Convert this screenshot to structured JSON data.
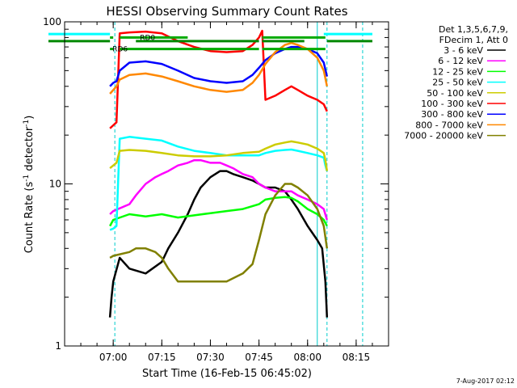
{
  "chart_data": {
    "type": "line",
    "title": "HESSI Observing Summary Count Rates",
    "xlabel": "Start Time (16-Feb-15 06:45:02)",
    "ylabel": "Count Rate (s",
    "ylabel_sup1": "-1",
    "ylabel_mid": " detector",
    "ylabel_sup2": "-1",
    "ylabel_end": ")",
    "x_unit": "minutes after 06:45:02",
    "x_range": [
      0,
      100
    ],
    "y_scale": "log",
    "y_range": [
      1,
      100
    ],
    "x_ticks": [
      {
        "label": "07:00",
        "value": 15
      },
      {
        "label": "07:15",
        "value": 30
      },
      {
        "label": "07:30",
        "value": 45
      },
      {
        "label": "07:45",
        "value": 60
      },
      {
        "label": "08:00",
        "value": 75
      },
      {
        "label": "08:15",
        "value": 90
      }
    ],
    "y_ticks": [
      {
        "label": "1",
        "value": 1
      },
      {
        "label": "10",
        "value": 10
      },
      {
        "label": "100",
        "value": 100
      }
    ],
    "legend_header": [
      "Det 1,3,5,6,7,9,",
      "FDecim 1, Att 0"
    ],
    "legend_position": "right",
    "grid": false,
    "series": [
      {
        "name": "3 - 6 keV",
        "color": "#000000",
        "x": [
          14,
          14.5,
          15,
          17,
          20,
          25,
          30,
          32,
          35,
          38,
          40,
          42,
          45,
          48,
          50,
          52,
          55,
          58,
          60,
          62,
          65,
          68,
          70,
          72,
          75,
          78,
          79.5,
          80.5,
          81
        ],
        "y": [
          1.5,
          2,
          2.5,
          3.5,
          3,
          2.8,
          3.3,
          4,
          5,
          6.5,
          8,
          9.5,
          11,
          12,
          12,
          11.5,
          11,
          10.5,
          10,
          9.5,
          9.5,
          9,
          8,
          7,
          5.5,
          4.5,
          4,
          2.5,
          1.5
        ]
      },
      {
        "name": "6 - 12 keV",
        "color": "#ff00ff",
        "x": [
          14,
          15,
          20,
          22,
          25,
          28,
          30,
          32,
          35,
          38,
          40,
          42,
          45,
          48,
          50,
          52,
          55,
          58,
          60,
          62,
          65,
          68,
          70,
          72,
          75,
          78,
          80,
          81
        ],
        "y": [
          6.5,
          6.8,
          7.5,
          8.5,
          10,
          11,
          11.5,
          12,
          13,
          13.5,
          14,
          14,
          13.5,
          13.5,
          13,
          12.5,
          11.5,
          11,
          10,
          9.5,
          9,
          9,
          9,
          8.5,
          8,
          7.5,
          7,
          6
        ]
      },
      {
        "name": "12 - 25 keV",
        "color": "#00ff00",
        "x": [
          14,
          15,
          20,
          25,
          30,
          35,
          40,
          45,
          50,
          55,
          60,
          62,
          65,
          68,
          70,
          72,
          75,
          78,
          80,
          81
        ],
        "y": [
          5.5,
          6,
          6.5,
          6.3,
          6.5,
          6.2,
          6.4,
          6.6,
          6.8,
          7,
          7.5,
          8,
          8.2,
          8.3,
          8.2,
          7.8,
          7,
          6.5,
          6,
          5.5
        ]
      },
      {
        "name": "25 - 50 keV",
        "color": "#00ffff",
        "x": [
          14,
          15,
          16,
          17,
          20,
          25,
          30,
          35,
          40,
          45,
          50,
          55,
          60,
          62,
          65,
          68,
          70,
          72,
          75,
          78,
          80,
          80.5,
          81
        ],
        "y": [
          5.2,
          5.3,
          5.5,
          19,
          19.5,
          19,
          18.5,
          17,
          16,
          15.5,
          15,
          15,
          15,
          15.5,
          16,
          16.2,
          16.3,
          16,
          15.5,
          15,
          14.5,
          13,
          12
        ]
      },
      {
        "name": "50 - 100 keV",
        "color": "#cccc00",
        "x": [
          14,
          15,
          16,
          17,
          20,
          25,
          30,
          35,
          40,
          45,
          50,
          55,
          60,
          62,
          65,
          68,
          70,
          72,
          75,
          78,
          80,
          80.5,
          81
        ],
        "y": [
          12.5,
          13,
          13.5,
          16,
          16.2,
          16,
          15.5,
          15,
          14.8,
          14.8,
          15,
          15.5,
          15.8,
          16.5,
          17.5,
          18,
          18.3,
          18,
          17.5,
          16.5,
          15.5,
          14,
          12
        ]
      },
      {
        "name": "100 - 300 keV",
        "color": "#ff0000",
        "x": [
          14,
          15,
          16,
          17,
          20,
          25,
          30,
          35,
          40,
          45,
          50,
          55,
          58,
          60,
          61,
          62,
          65,
          68,
          70,
          72,
          75,
          78,
          80,
          81
        ],
        "y": [
          22,
          23,
          24,
          85,
          86,
          87,
          85,
          76,
          70,
          66,
          65,
          66,
          72,
          80,
          88,
          33,
          35,
          38,
          40,
          38,
          35,
          33,
          31,
          28
        ]
      },
      {
        "name": "300 - 800 keV",
        "color": "#0000ff",
        "x": [
          14,
          15,
          16,
          17,
          20,
          25,
          30,
          35,
          40,
          45,
          50,
          55,
          58,
          60,
          62,
          65,
          68,
          70,
          72,
          75,
          78,
          80,
          81
        ],
        "y": [
          40,
          42,
          43,
          50,
          56,
          57,
          55,
          50,
          45,
          43,
          42,
          43,
          47,
          52,
          58,
          64,
          68,
          70,
          70,
          68,
          64,
          56,
          46
        ]
      },
      {
        "name": "800 - 7000 keV",
        "color": "#ff8800",
        "x": [
          14,
          15,
          16,
          17,
          20,
          25,
          30,
          35,
          40,
          45,
          50,
          55,
          58,
          60,
          62,
          65,
          68,
          70,
          72,
          75,
          78,
          80,
          81
        ],
        "y": [
          36,
          38,
          40,
          44,
          47,
          48,
          46,
          43,
          40,
          38,
          37,
          38,
          42,
          47,
          55,
          65,
          72,
          74,
          72,
          68,
          60,
          50,
          40
        ]
      },
      {
        "name": "7000 - 20000 keV",
        "color": "#808000",
        "x": [
          14,
          15,
          20,
          22,
          25,
          28,
          30,
          32,
          35,
          38,
          40,
          45,
          50,
          55,
          58,
          60,
          62,
          65,
          68,
          70,
          72,
          75,
          78,
          80,
          81
        ],
        "y": [
          3.5,
          3.6,
          3.8,
          4,
          4,
          3.8,
          3.5,
          3,
          2.5,
          2.5,
          2.5,
          2.5,
          2.5,
          2.8,
          3.2,
          4.5,
          6.5,
          8.5,
          10,
          10,
          9.5,
          8.5,
          7,
          5.5,
          4
        ]
      }
    ],
    "flags": [
      {
        "label": "RD0",
        "color": "#00aa00",
        "level": 80,
        "segments": [
          [
            14,
            15
          ],
          [
            17,
            38
          ],
          [
            61,
            80.5
          ]
        ]
      },
      {
        "label": "RD6",
        "color": "#00aa00",
        "level": 68,
        "segments": [
          [
            14,
            15
          ],
          [
            17,
            60
          ],
          [
            61,
            80.5
          ]
        ]
      },
      {
        "label": "",
        "color": "#008800",
        "level": 76,
        "segments": [
          [
            -5,
            14
          ],
          [
            22,
            60
          ],
          [
            61,
            74
          ]
        ]
      },
      {
        "label": "",
        "color": "#008800",
        "level": 76,
        "segments": [
          [
            81,
            95
          ]
        ]
      },
      {
        "label": "",
        "color": "#00ffff",
        "level": 84,
        "segments": [
          [
            -5,
            14
          ],
          [
            80,
            95
          ]
        ]
      }
    ],
    "vertical_lines": [
      {
        "x": 15.5,
        "style": "dashed",
        "color": "#00cccc"
      },
      {
        "x": 78,
        "style": "solid",
        "color": "#00cccc"
      },
      {
        "x": 81,
        "style": "dashed",
        "color": "#00cccc"
      },
      {
        "x": 92,
        "style": "dashed",
        "color": "#00cccc"
      },
      {
        "x": 0,
        "style": "solid",
        "color": "#00cccc"
      }
    ]
  },
  "footer": {
    "date_stamp": "7-Aug-2017 02:12"
  }
}
